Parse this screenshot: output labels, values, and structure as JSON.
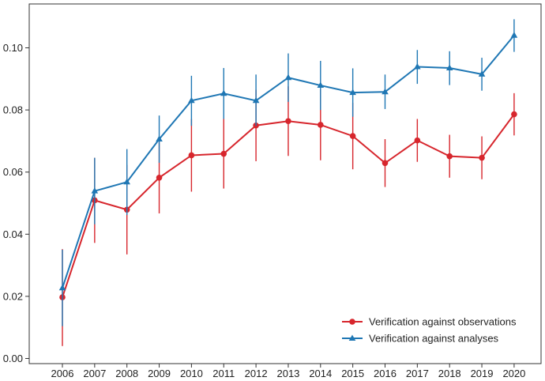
{
  "chart_data": {
    "type": "line",
    "title": "",
    "xlabel": "",
    "ylabel": "",
    "x": [
      2006,
      2007,
      2008,
      2009,
      2010,
      2011,
      2012,
      2013,
      2014,
      2015,
      2016,
      2017,
      2018,
      2019,
      2020
    ],
    "x_tick_labels": [
      "2006",
      "2007",
      "2008",
      "2009",
      "2010",
      "2011",
      "2012",
      "2013",
      "2014",
      "2015",
      "2016",
      "2017",
      "2018",
      "2019",
      "2020"
    ],
    "ylim": [
      -0.002,
      0.113
    ],
    "y_ticks": [
      0.0,
      0.02,
      0.04,
      0.06,
      0.08,
      0.1
    ],
    "y_tick_labels": [
      "0.00",
      "0.02",
      "0.04",
      "0.06",
      "0.08",
      "0.10"
    ],
    "grid": false,
    "legend_position": "bottom-right",
    "series": [
      {
        "name": "Verification against observations",
        "color": "#d7262d",
        "marker": "circle",
        "values": [
          0.0197,
          0.0509,
          0.0479,
          0.0582,
          0.0654,
          0.0659,
          0.075,
          0.0764,
          0.0752,
          0.0716,
          0.0629,
          0.0702,
          0.0651,
          0.0646,
          0.0786
        ],
        "error_low": [
          0.004,
          0.0372,
          0.0335,
          0.0467,
          0.0537,
          0.0547,
          0.0635,
          0.0652,
          0.0638,
          0.0609,
          0.0552,
          0.0633,
          0.0582,
          0.0577,
          0.0718
        ],
        "error_high": [
          0.0352,
          0.0646,
          0.0623,
          0.0697,
          0.0771,
          0.0771,
          0.0865,
          0.0876,
          0.0866,
          0.0823,
          0.0706,
          0.0771,
          0.072,
          0.0715,
          0.0854
        ]
      },
      {
        "name": "Verification against analyses",
        "color": "#1f77b4",
        "marker": "triangle",
        "values": [
          0.0227,
          0.0539,
          0.0568,
          0.0706,
          0.083,
          0.0853,
          0.083,
          0.0904,
          0.0879,
          0.0856,
          0.0858,
          0.0939,
          0.0935,
          0.0915,
          0.104
        ],
        "error_low": [
          0.0104,
          0.0432,
          0.0462,
          0.063,
          0.0749,
          0.0771,
          0.0749,
          0.0826,
          0.08,
          0.0778,
          0.0803,
          0.0884,
          0.088,
          0.0862,
          0.0987
        ],
        "error_high": [
          0.035,
          0.0646,
          0.0674,
          0.0782,
          0.091,
          0.0935,
          0.0914,
          0.0982,
          0.0958,
          0.0934,
          0.0914,
          0.0993,
          0.0989,
          0.0968,
          0.1092
        ]
      }
    ]
  }
}
